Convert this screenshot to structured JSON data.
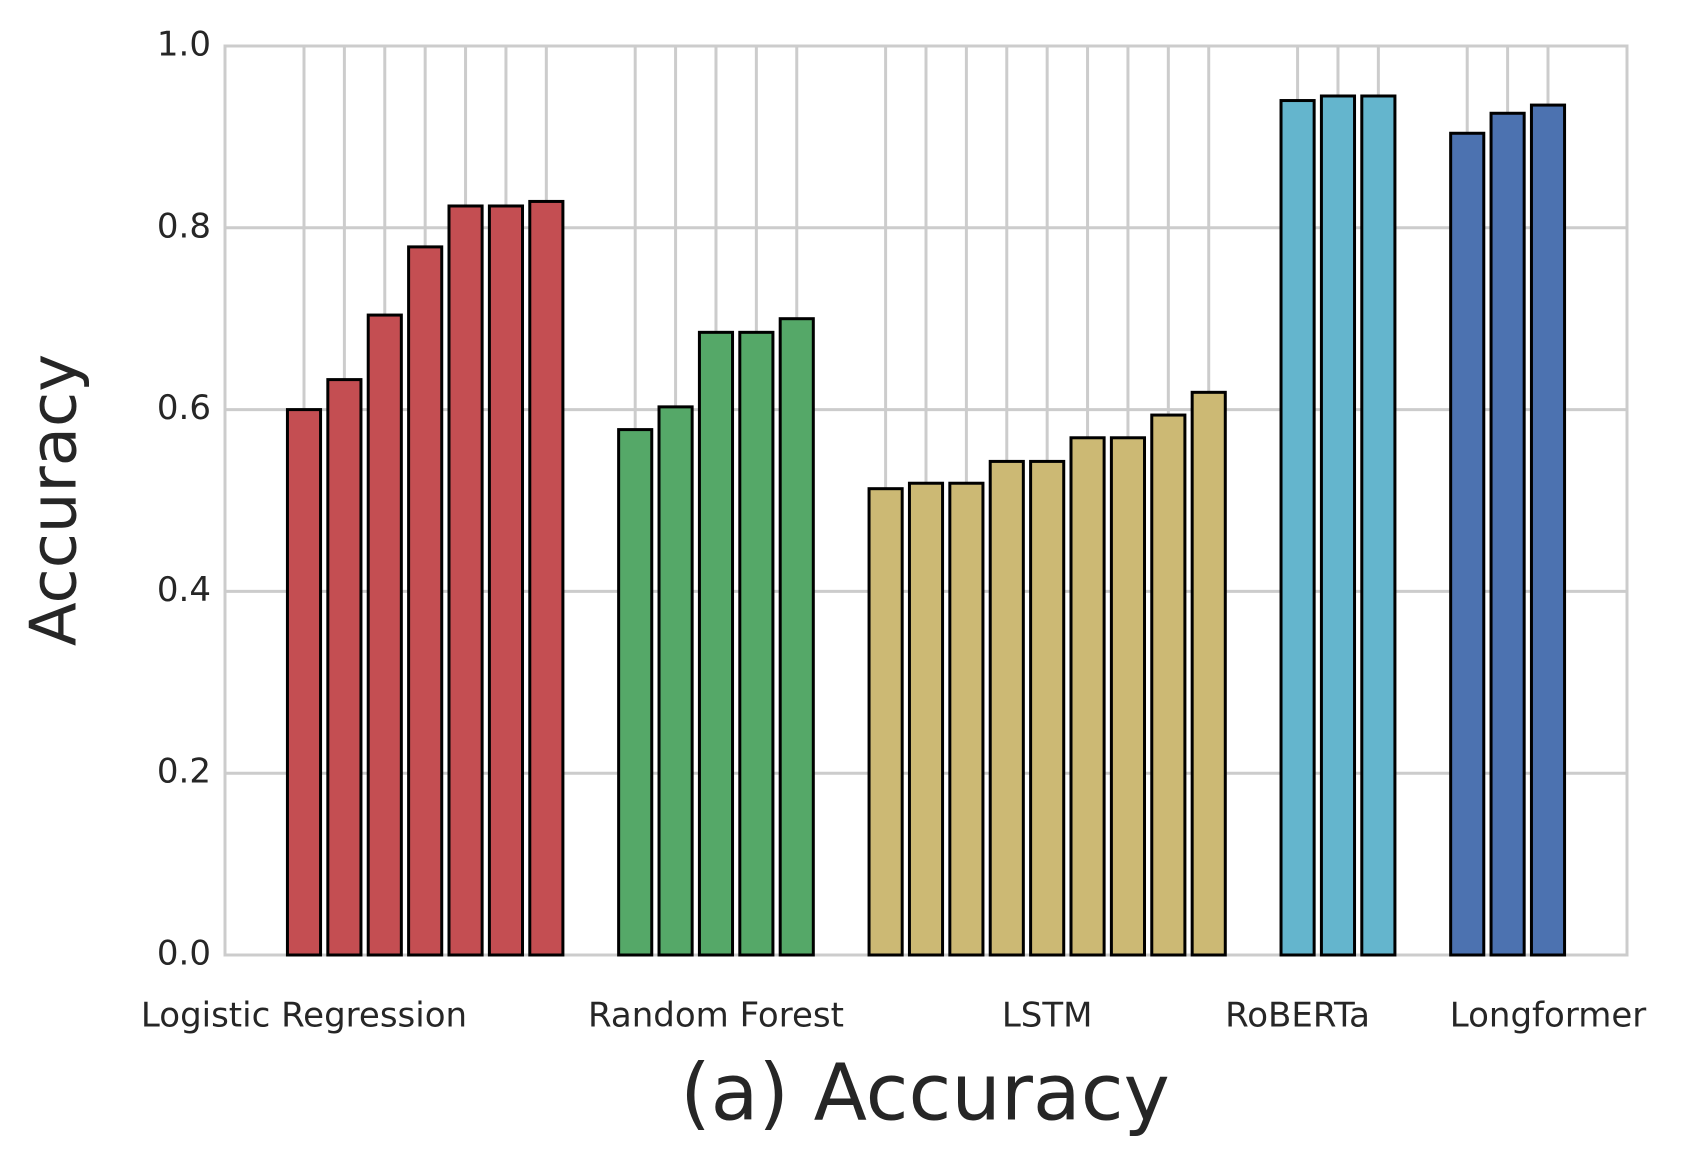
{
  "chart_data": {
    "type": "grouped-bar",
    "title": "(a) Accuracy",
    "y_label": "Accuracy",
    "series": [
      {
        "name": "Logistic Regression",
        "color": "#c44e52",
        "values": [
          0.6,
          0.633,
          0.704,
          0.779,
          0.824,
          0.824,
          0.829
        ]
      },
      {
        "name": "Random Forest",
        "color": "#55a868",
        "values": [
          0.578,
          0.603,
          0.685,
          0.685,
          0.7
        ]
      },
      {
        "name": "LSTM",
        "color": "#ccb974",
        "values": [
          0.513,
          0.519,
          0.519,
          0.543,
          0.543,
          0.569,
          0.569,
          0.594,
          0.619
        ]
      },
      {
        "name": "RoBERTa",
        "color": "#64b5cd",
        "values": [
          0.94,
          0.945,
          0.945
        ]
      },
      {
        "name": "Longformer",
        "color": "#4c72b0",
        "values": [
          0.904,
          0.926,
          0.935
        ]
      }
    ],
    "ylim": [
      0,
      1
    ],
    "yticks": [
      {
        "value": 0,
        "label": "0.0"
      },
      {
        "value": 0.2,
        "label": "0.2"
      },
      {
        "value": 0.4,
        "label": "0.4"
      },
      {
        "value": 0.6,
        "label": "0.6"
      },
      {
        "value": 0.8,
        "label": "0.8"
      },
      {
        "value": 1,
        "label": "1.0"
      }
    ],
    "grid": true
  }
}
